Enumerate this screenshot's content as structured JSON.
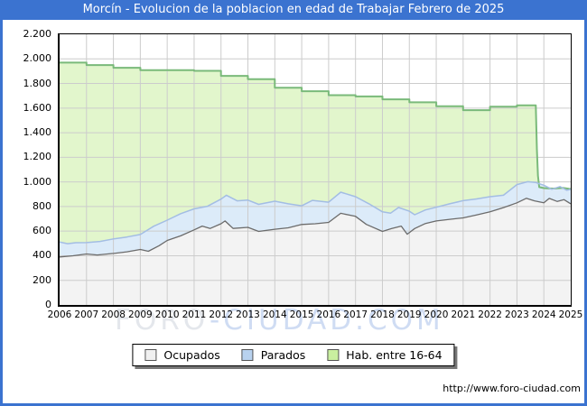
{
  "window": {
    "title": "Morcín - Evolucion de la poblacion en edad de Trabajar Febrero de 2025"
  },
  "colors": {
    "frame_blue": "#3b73d0",
    "grid": "#cccccc",
    "plot_border": "#000000",
    "background": "#ffffff"
  },
  "watermark": {
    "part1": "FORO",
    "part2": "-CIUDAD.COM"
  },
  "footer": {
    "url": "http://www.foro-ciudad.com"
  },
  "legend": {
    "items": [
      {
        "label": "Ocupados",
        "fill": "#f0f0f0",
        "border": "#555555"
      },
      {
        "label": "Parados",
        "fill": "#b8d2ef",
        "border": "#555555"
      },
      {
        "label": "Hab. entre 16-64",
        "fill": "#c9ef9f",
        "border": "#555555"
      }
    ]
  },
  "chart_data": {
    "type": "area",
    "title": "Morcín - Evolucion de la poblacion en edad de Trabajar Febrero de 2025",
    "xlabel": "",
    "ylabel": "",
    "grid": true,
    "legend_position": "bottom",
    "x_axis": {
      "min": 2006,
      "max": 2025,
      "tick_labels": [
        "2006",
        "2007",
        "2008",
        "2009",
        "2010",
        "2011",
        "2012",
        "2013",
        "2014",
        "2015",
        "2016",
        "2017",
        "2018",
        "2019",
        "2020",
        "2021",
        "2022",
        "2023",
        "2024",
        "2025"
      ]
    },
    "y_axis": {
      "min": 0,
      "max": 2200,
      "step": 200,
      "values": [
        0,
        200,
        400,
        600,
        800,
        1000,
        1200,
        1400,
        1600,
        1800,
        2000,
        2200
      ],
      "tick_labels": [
        "0",
        "200",
        "400",
        "600",
        "800",
        "1.000",
        "1.200",
        "1.400",
        "1.600",
        "1.800",
        "2.000",
        "2.200"
      ]
    },
    "note": "Parados series is drawn stacked on top of Ocupados; its points below are the rendered cumulative top line (Ocupados + Parados). Hab. entre 16-64 is the yearly padron step line with a sharp drop in late 2023.",
    "series": [
      {
        "name": "Hab. entre 16-64",
        "draw_order": 1,
        "line_color": "#7aba7a",
        "fill_color": "#e2f6cc",
        "line_width": 2,
        "points": [
          [
            2006,
            1970
          ],
          [
            2007,
            1970
          ],
          [
            2007,
            1950
          ],
          [
            2008,
            1950
          ],
          [
            2008,
            1928
          ],
          [
            2009,
            1928
          ],
          [
            2009,
            1908
          ],
          [
            2011,
            1908
          ],
          [
            2011,
            1903
          ],
          [
            2012,
            1903
          ],
          [
            2012,
            1862
          ],
          [
            2013,
            1862
          ],
          [
            2013,
            1835
          ],
          [
            2014,
            1835
          ],
          [
            2014,
            1766
          ],
          [
            2015,
            1766
          ],
          [
            2015,
            1737
          ],
          [
            2016,
            1737
          ],
          [
            2016,
            1705
          ],
          [
            2017,
            1705
          ],
          [
            2017,
            1695
          ],
          [
            2018,
            1695
          ],
          [
            2018,
            1671
          ],
          [
            2019,
            1671
          ],
          [
            2019,
            1647
          ],
          [
            2020,
            1647
          ],
          [
            2020,
            1615
          ],
          [
            2021,
            1615
          ],
          [
            2021,
            1583
          ],
          [
            2022,
            1583
          ],
          [
            2022,
            1612
          ],
          [
            2023,
            1612
          ],
          [
            2023,
            1622
          ],
          [
            2023.7,
            1622
          ],
          [
            2023.74,
            1268
          ],
          [
            2023.78,
            1050
          ],
          [
            2023.83,
            958
          ],
          [
            2024,
            950
          ],
          [
            2024.35,
            946
          ],
          [
            2024.7,
            952
          ],
          [
            2025,
            942
          ]
        ]
      },
      {
        "name": "Parados",
        "draw_order": 2,
        "line_color": "#a3bde4",
        "fill_color": "#dcebf9",
        "line_width": 1.5,
        "points": [
          [
            2006,
            512
          ],
          [
            2006.3,
            498
          ],
          [
            2006.6,
            506
          ],
          [
            2007,
            507
          ],
          [
            2007.5,
            516
          ],
          [
            2008,
            537
          ],
          [
            2008.5,
            552
          ],
          [
            2009,
            573
          ],
          [
            2009.5,
            640
          ],
          [
            2010,
            689
          ],
          [
            2010.5,
            742
          ],
          [
            2011,
            781
          ],
          [
            2011.5,
            802
          ],
          [
            2012,
            860
          ],
          [
            2012.2,
            892
          ],
          [
            2012.6,
            846
          ],
          [
            2013,
            852
          ],
          [
            2013.4,
            818
          ],
          [
            2014,
            843
          ],
          [
            2014.5,
            822
          ],
          [
            2015,
            806
          ],
          [
            2015.4,
            850
          ],
          [
            2016,
            835
          ],
          [
            2016.45,
            917
          ],
          [
            2017,
            880
          ],
          [
            2017.5,
            822
          ],
          [
            2018,
            757
          ],
          [
            2018.3,
            746
          ],
          [
            2018.6,
            792
          ],
          [
            2019,
            762
          ],
          [
            2019.2,
            733
          ],
          [
            2019.6,
            772
          ],
          [
            2020,
            794
          ],
          [
            2020.5,
            822
          ],
          [
            2021,
            848
          ],
          [
            2021.5,
            862
          ],
          [
            2022,
            880
          ],
          [
            2022.5,
            892
          ],
          [
            2023,
            978
          ],
          [
            2023.4,
            1002
          ],
          [
            2023.7,
            995
          ],
          [
            2024,
            973
          ],
          [
            2024.3,
            940
          ],
          [
            2024.6,
            962
          ],
          [
            2024.85,
            932
          ],
          [
            2025,
            940
          ]
        ]
      },
      {
        "name": "Ocupados",
        "draw_order": 3,
        "line_color": "#6b6b6b",
        "fill_color": "#f3f3f3",
        "line_width": 1.3,
        "points": [
          [
            2006,
            390
          ],
          [
            2006.5,
            400
          ],
          [
            2007,
            414
          ],
          [
            2007.4,
            406
          ],
          [
            2008,
            419
          ],
          [
            2008.5,
            432
          ],
          [
            2009,
            451
          ],
          [
            2009.3,
            436
          ],
          [
            2009.7,
            482
          ],
          [
            2010,
            524
          ],
          [
            2010.5,
            562
          ],
          [
            2011,
            610
          ],
          [
            2011.3,
            641
          ],
          [
            2011.6,
            622
          ],
          [
            2012,
            660
          ],
          [
            2012.15,
            683
          ],
          [
            2012.45,
            622
          ],
          [
            2013,
            631
          ],
          [
            2013.4,
            598
          ],
          [
            2014,
            615
          ],
          [
            2014.5,
            627
          ],
          [
            2015,
            654
          ],
          [
            2015.5,
            660
          ],
          [
            2016,
            671
          ],
          [
            2016.45,
            745
          ],
          [
            2017,
            720
          ],
          [
            2017.4,
            655
          ],
          [
            2018,
            598
          ],
          [
            2018.35,
            622
          ],
          [
            2018.7,
            641
          ],
          [
            2018.92,
            575
          ],
          [
            2019.2,
            621
          ],
          [
            2019.6,
            662
          ],
          [
            2020,
            683
          ],
          [
            2020.5,
            696
          ],
          [
            2021,
            708
          ],
          [
            2021.5,
            731
          ],
          [
            2022,
            757
          ],
          [
            2022.5,
            791
          ],
          [
            2023,
            830
          ],
          [
            2023.35,
            867
          ],
          [
            2023.65,
            846
          ],
          [
            2024,
            831
          ],
          [
            2024.2,
            866
          ],
          [
            2024.5,
            841
          ],
          [
            2024.75,
            856
          ],
          [
            2025,
            822
          ]
        ]
      }
    ]
  }
}
